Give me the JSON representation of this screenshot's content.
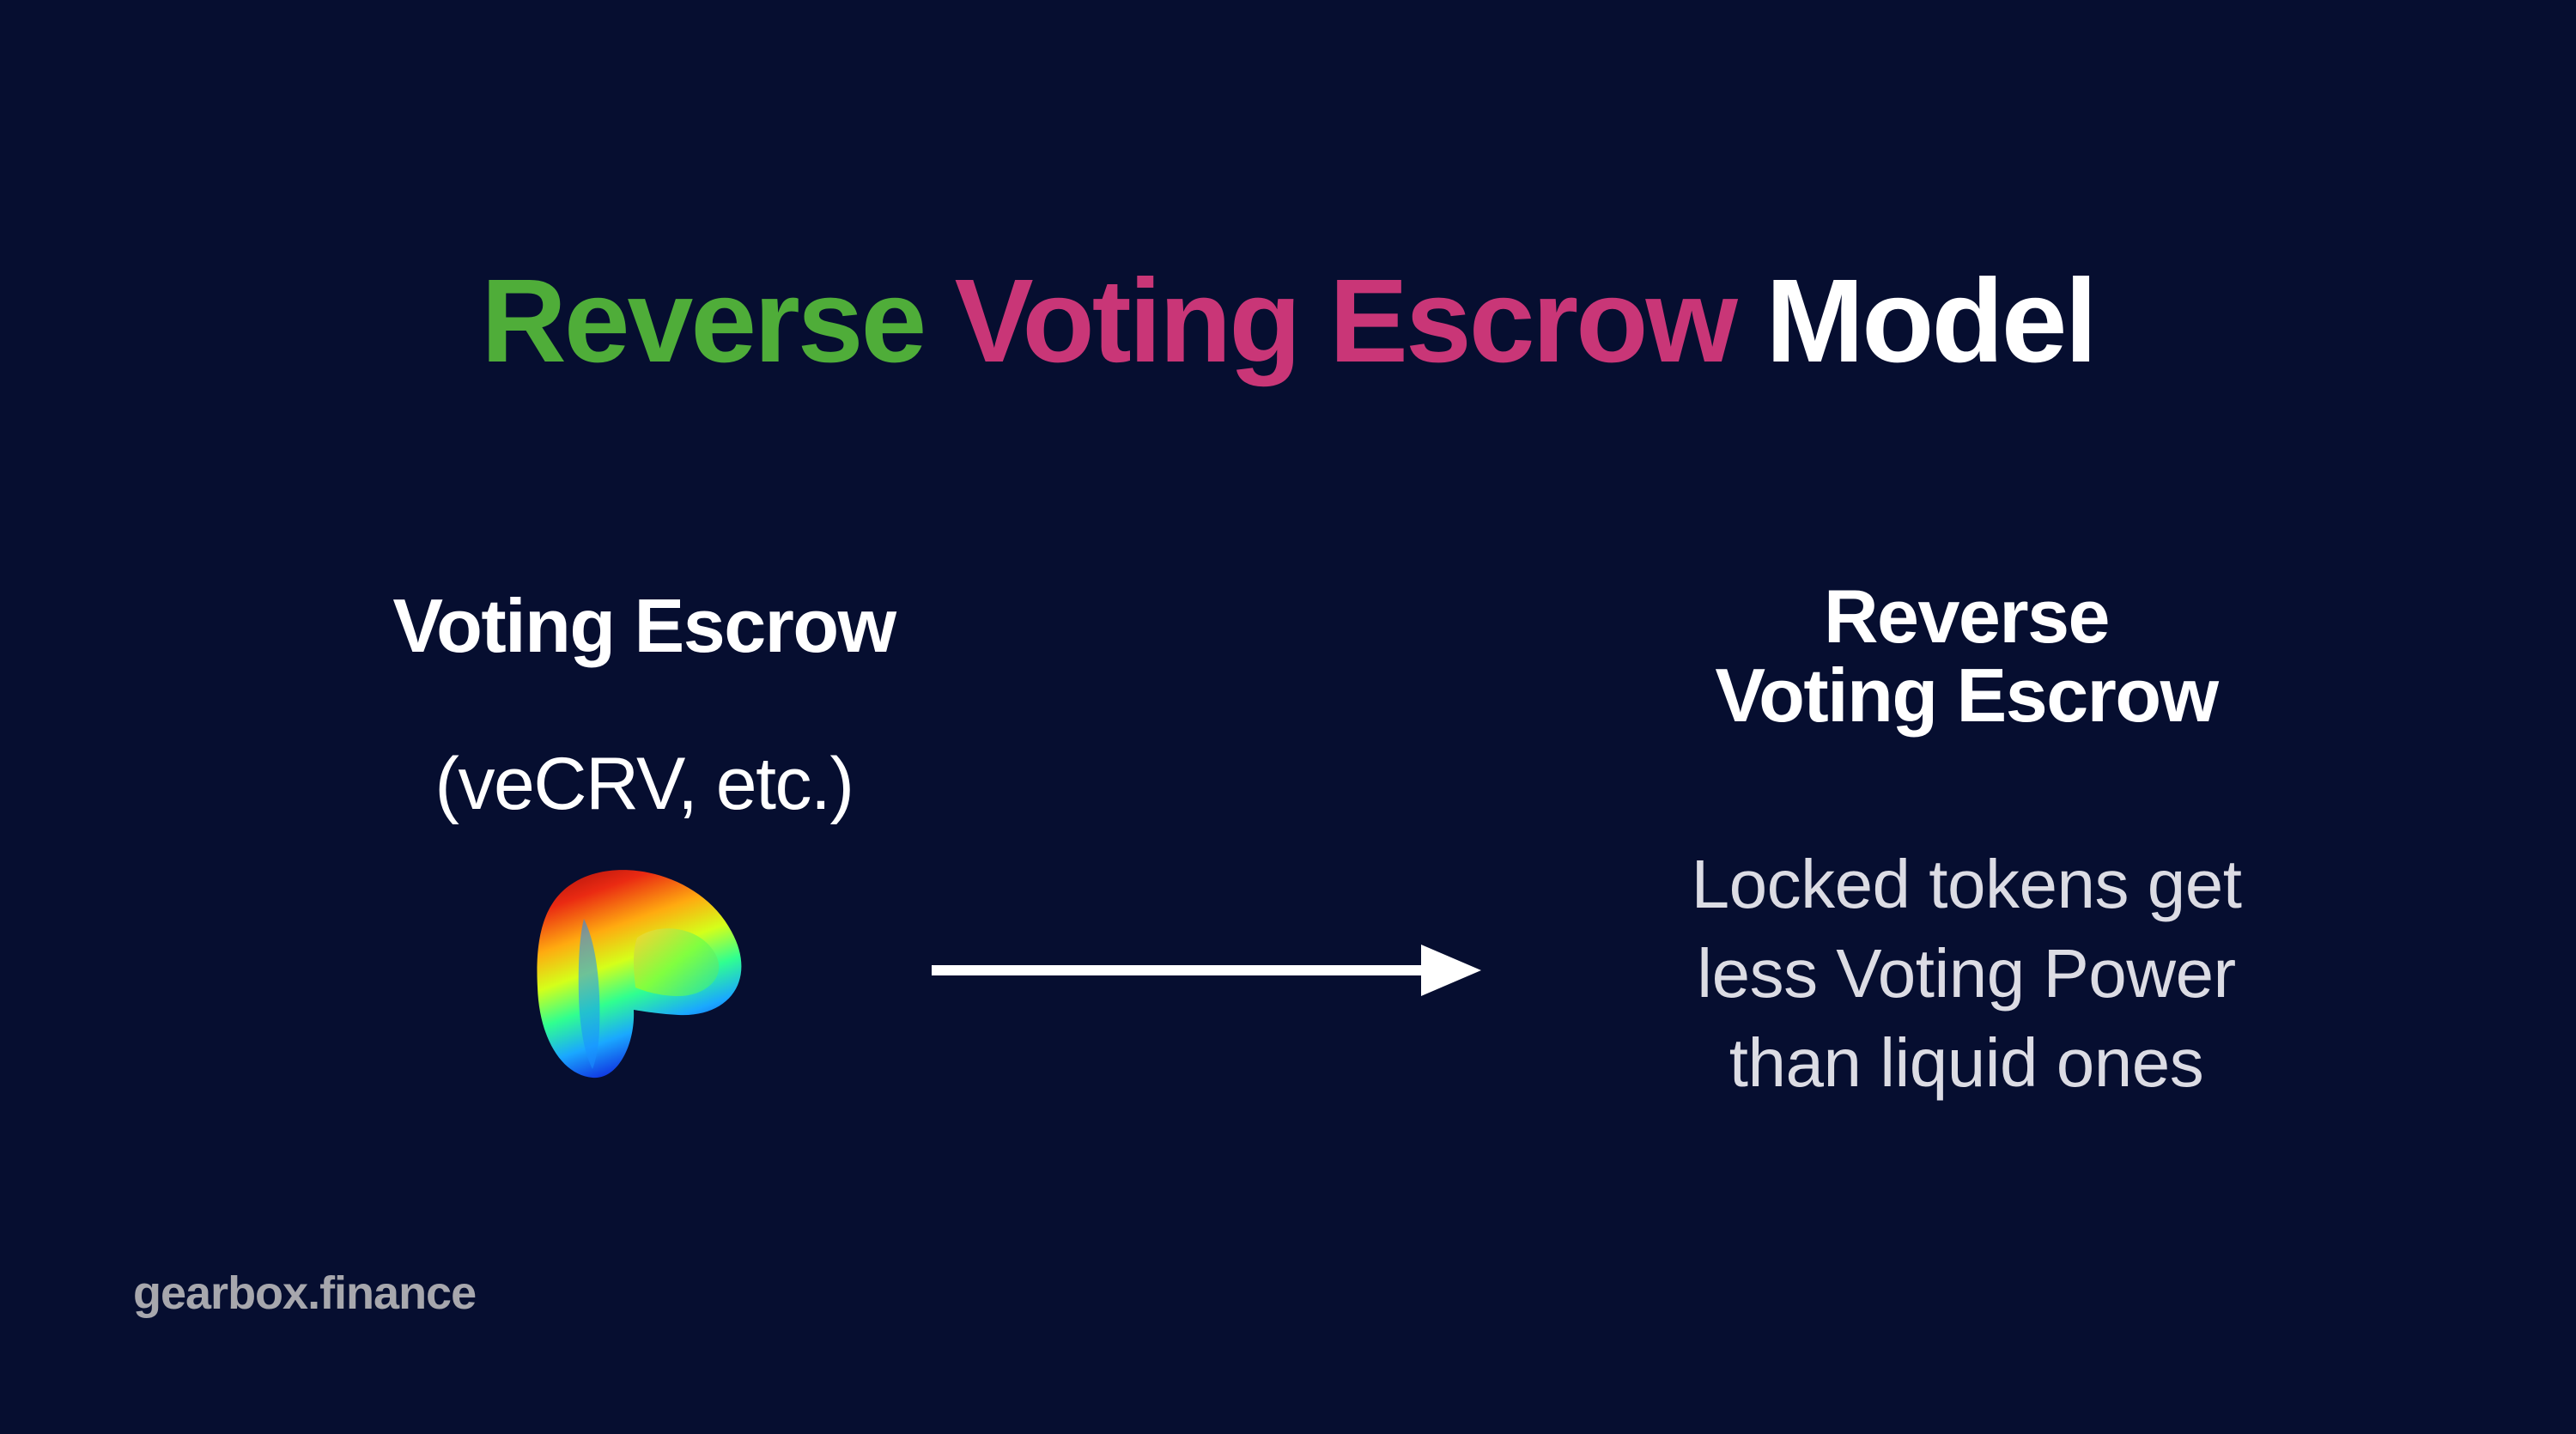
{
  "title": {
    "part1": "Reverse",
    "part2": "Voting Escrow",
    "part3": "Model"
  },
  "left": {
    "heading": "Voting Escrow",
    "subheading": "(veCRV, etc.)",
    "logo_icon": "curve-logo-icon"
  },
  "arrow_icon": "right-arrow-icon",
  "right": {
    "heading_line1": "Reverse",
    "heading_line2": "Voting Escrow",
    "desc_line1": "Locked tokens get",
    "desc_line2": "less Voting Power",
    "desc_line3": "than liquid ones"
  },
  "footer": "gearbox.finance",
  "colors": {
    "background": "#060e30",
    "green": "#4fad39",
    "pink": "#c93677",
    "white": "#ffffff"
  }
}
